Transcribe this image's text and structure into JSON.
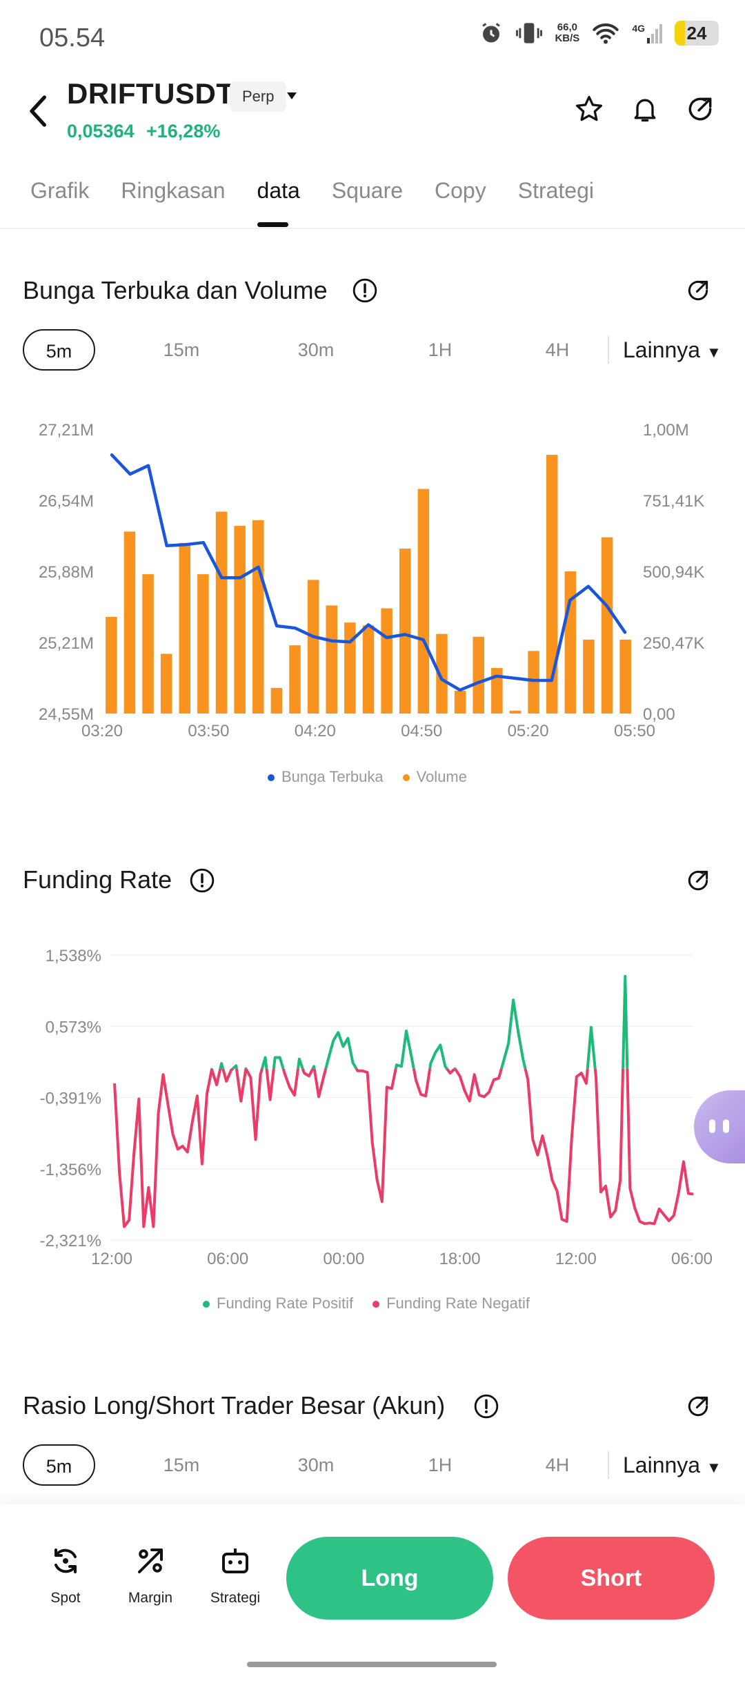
{
  "status_bar": {
    "time": "05.54",
    "net_speed_value": "66,0",
    "net_speed_unit": "KB/S",
    "network": "4G",
    "battery": "24"
  },
  "header": {
    "pair": "DRIFTUSDT",
    "market_type": "Perp",
    "price": "0,05364",
    "change": "+16,28%"
  },
  "tabs": [
    "Grafik",
    "Ringkasan",
    "data",
    "Square",
    "Copy",
    "Strategi"
  ],
  "active_tab": "data",
  "oi_section": {
    "title": "Bunga Terbuka dan Volume",
    "timeframes": [
      "5m",
      "15m",
      "30m",
      "1H",
      "4H"
    ],
    "more": "Lainnya",
    "legend": [
      "Bunga Terbuka",
      "Volume"
    ]
  },
  "funding_section": {
    "title": "Funding Rate",
    "legend": [
      "Funding Rate Positif",
      "Funding Rate Negatif"
    ]
  },
  "ls_section": {
    "title": "Rasio Long/Short Trader Besar (Akun)",
    "timeframes": [
      "5m",
      "15m",
      "30m",
      "1H",
      "4H"
    ],
    "more": "Lainnya"
  },
  "bottom_bar": {
    "spot": "Spot",
    "margin": "Margin",
    "strategi": "Strategi",
    "long": "Long",
    "short": "Short"
  },
  "colors": {
    "green": "#2ec286",
    "red": "#f45565",
    "orange": "#f7931e",
    "blue": "#1a56db"
  },
  "chart_data": [
    {
      "type": "bar+line",
      "title": "Bunga Terbuka dan Volume",
      "x_tick_labels": [
        "03:20",
        "03:50",
        "04:20",
        "04:50",
        "05:20",
        "05:50"
      ],
      "y_left_ticks": [
        "27,21M",
        "26,54M",
        "25,88M",
        "25,21M",
        "24,55M"
      ],
      "y_right_ticks": [
        "1,00M",
        "751,41K",
        "500,94K",
        "250,47K",
        "0,00"
      ],
      "y_left_range": [
        24.55,
        27.21
      ],
      "y_right_range": [
        0,
        1.0
      ],
      "series": [
        {
          "name": "Volume",
          "type": "bar",
          "axis": "right",
          "values": [
            0.34,
            0.64,
            0.49,
            0.21,
            0.6,
            0.49,
            0.71,
            0.66,
            0.68,
            0.09,
            0.24,
            0.47,
            0.38,
            0.32,
            0.31,
            0.37,
            0.58,
            0.79,
            0.28,
            0.08,
            0.27,
            0.16,
            0.01,
            0.22,
            0.91,
            0.5,
            0.26,
            0.62,
            0.26
          ]
        },
        {
          "name": "Bunga Terbuka",
          "type": "line",
          "axis": "left",
          "values": [
            26.97,
            26.79,
            26.87,
            26.12,
            26.13,
            26.15,
            25.82,
            25.82,
            25.92,
            25.37,
            25.35,
            25.27,
            25.23,
            25.22,
            25.38,
            25.26,
            25.29,
            25.24,
            24.87,
            24.77,
            24.84,
            24.9,
            24.88,
            24.86,
            24.86,
            25.61,
            25.74,
            25.56,
            25.31
          ]
        }
      ]
    },
    {
      "type": "line",
      "title": "Funding Rate",
      "x_tick_labels": [
        "12:00",
        "06:00",
        "00:00",
        "18:00",
        "12:00",
        "06:00"
      ],
      "y_ticks": [
        "1,538%",
        "0,573%",
        "-0,391%",
        "-1,356%",
        "-2,321%"
      ],
      "y_range": [
        -2.321,
        1.538
      ],
      "series": [
        {
          "name": "Funding Rate",
          "positive_color": "green",
          "negative_color": "red",
          "values": [
            -0.2,
            -1.4,
            -2.14,
            -2.05,
            -1.15,
            -0.41,
            -2.14,
            -1.61,
            -2.14,
            -0.61,
            -0.08,
            -0.49,
            -0.89,
            -1.09,
            -1.05,
            -1.13,
            -0.72,
            -0.37,
            -1.29,
            -0.34,
            -0.01,
            -0.22,
            0.07,
            -0.17,
            -0.02,
            0.04,
            -0.44,
            0.0,
            -0.12,
            -0.96,
            -0.08,
            0.15,
            -0.42,
            0.15,
            0.15,
            -0.07,
            -0.25,
            -0.36,
            0.13,
            -0.06,
            -0.1,
            0.03,
            -0.38,
            -0.11,
            0.14,
            0.38,
            0.49,
            0.3,
            0.41,
            0.08,
            -0.03,
            -0.03,
            -0.05,
            -1.0,
            -1.51,
            -1.8,
            -0.25,
            -0.27,
            0.05,
            0.03,
            0.51,
            0.18,
            -0.16,
            -0.35,
            -0.37,
            0.07,
            0.22,
            0.32,
            0.03,
            -0.06,
            0.0,
            -0.1,
            -0.3,
            -0.44,
            -0.08,
            -0.36,
            -0.38,
            -0.32,
            -0.15,
            -0.13,
            0.1,
            0.34,
            0.93,
            0.5,
            0.13,
            -0.15,
            -0.96,
            -1.17,
            -0.91,
            -1.18,
            -1.51,
            -1.66,
            -2.04,
            -2.07,
            -0.95,
            -0.11,
            -0.06,
            -0.2,
            0.56,
            -0.12,
            -1.67,
            -1.59,
            -2.01,
            -1.92,
            -1.51,
            1.25,
            -1.62,
            -1.89,
            -2.07,
            -2.1,
            -2.09,
            -2.1,
            -1.9,
            -1.98,
            -2.06,
            -1.99,
            -1.68,
            -1.26,
            -1.69,
            -1.7
          ]
        }
      ]
    }
  ]
}
